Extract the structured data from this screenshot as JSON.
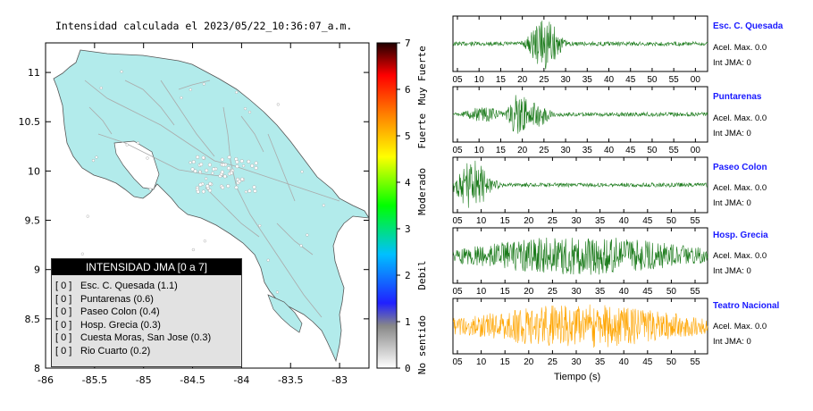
{
  "header": {
    "title": "Intensidad calculada el 2023/05/22_10:36:07_a.m."
  },
  "map": {
    "x_ticks": [
      "-86",
      "-85.5",
      "-85",
      "-84.5",
      "-84",
      "-83.5",
      "-83"
    ],
    "x_values": [
      -86,
      -85.5,
      -85,
      -84.5,
      -84,
      -83.5,
      -83
    ],
    "y_ticks": [
      "11",
      "10.5",
      "10",
      "9.5",
      "9",
      "8.5",
      "8"
    ],
    "y_values": [
      11,
      10.5,
      10,
      9.5,
      9,
      8.5,
      8
    ],
    "xlim": [
      -86,
      -82.7
    ],
    "ylim": [
      8,
      11.3
    ],
    "land_color": "#b2ebeb",
    "road_color": "#aaaaaa"
  },
  "colorbar": {
    "ticks": [
      "0",
      "1",
      "2",
      "3",
      "4",
      "5",
      "6",
      "7"
    ],
    "range": [
      0,
      7
    ],
    "categories": [
      "No sentido",
      "Debil",
      "Moderado",
      "Fuerte",
      "Muy Fuerte"
    ],
    "colors": [
      "#ffffff",
      "#888888",
      "#0000ff",
      "#00bfff",
      "#00ff00",
      "#ffff00",
      "#ff8000",
      "#ff0000",
      "#000000"
    ]
  },
  "legend": {
    "title": "INTENSIDAD JMA [0 a 7]",
    "items": [
      {
        "level": "[ 0 ]",
        "station": "Esc. C. Quesada (1.1)"
      },
      {
        "level": "[ 0 ]",
        "station": "Puntarenas (0.6)"
      },
      {
        "level": "[ 0 ]",
        "station": "Paseo Colon (0.4)"
      },
      {
        "level": "[ 0 ]",
        "station": "Hosp. Grecia (0.3)"
      },
      {
        "level": "[ 0 ]",
        "station": "Cuesta Moras, San Jose (0.3)"
      },
      {
        "level": "[ 0 ]",
        "station": "Rio Cuarto (0.2)"
      }
    ]
  },
  "stations": [
    {
      "name": "Esc. C. Quesada",
      "acel": "Acel. Max. 0.0",
      "jma": "Int JMA: 0",
      "color": "#1a7a1a",
      "ticks": [
        "05",
        "10",
        "15",
        "20",
        "25",
        "30",
        "35",
        "40",
        "45",
        "50",
        "55",
        "00"
      ],
      "bursts": [
        [
          0.36,
          0.06,
          1.0
        ]
      ]
    },
    {
      "name": "Puntarenas",
      "acel": "Acel. Max. 0.0",
      "jma": "Int JMA: 0",
      "color": "#1a7a1a",
      "ticks": [
        "05",
        "10",
        "15",
        "20",
        "25",
        "30",
        "35",
        "40",
        "45",
        "50",
        "55",
        "00"
      ],
      "bursts": [
        [
          0.26,
          0.04,
          0.95
        ],
        [
          0.33,
          0.05,
          0.5
        ],
        [
          0.12,
          0.08,
          0.3
        ]
      ]
    },
    {
      "name": "Paseo Colon",
      "acel": "Acel. Max. 0.0",
      "jma": "Int JMA: 0",
      "color": "#1a7a1a",
      "ticks": [
        "05",
        "10",
        "15",
        "20",
        "25",
        "30",
        "35",
        "40",
        "45",
        "50",
        "55"
      ],
      "bursts": [
        [
          0.08,
          0.07,
          1.0
        ]
      ]
    },
    {
      "name": "Hosp. Grecia",
      "acel": "Acel. Max. 0.0",
      "jma": "Int JMA: 0",
      "color": "#1a7a1a",
      "ticks": [
        "05",
        "10",
        "15",
        "20",
        "25",
        "30",
        "35",
        "40",
        "45",
        "50",
        "55"
      ],
      "bursts": [
        [
          0.5,
          0.5,
          0.75
        ]
      ]
    },
    {
      "name": "Teatro Nacional",
      "acel": "Acel. Max. 0.0",
      "jma": "Int JMA: 0",
      "color": "#ffa500",
      "ticks": [
        "05",
        "10",
        "15",
        "20",
        "25",
        "30",
        "35",
        "40",
        "45",
        "50",
        "55"
      ],
      "bursts": [
        [
          0.5,
          0.5,
          0.85
        ]
      ]
    }
  ],
  "time_axis_label": "Tiempo (s)",
  "chart_data": {
    "type": "scatter",
    "title": "Intensidad calculada el 2023/05/22_10:36:07_a.m.",
    "xlim": [
      -86,
      -82.7
    ],
    "ylim": [
      8,
      11.3
    ],
    "series": [
      {
        "name": "Esc. C. Quesada",
        "intensity": 1.1,
        "jma": 0
      },
      {
        "name": "Puntarenas",
        "intensity": 0.6,
        "jma": 0
      },
      {
        "name": "Paseo Colon",
        "intensity": 0.4,
        "jma": 0
      },
      {
        "name": "Hosp. Grecia",
        "intensity": 0.3,
        "jma": 0
      },
      {
        "name": "Cuesta Moras, San Jose",
        "intensity": 0.3,
        "jma": 0
      },
      {
        "name": "Rio Cuarto",
        "intensity": 0.2,
        "jma": 0
      }
    ]
  }
}
